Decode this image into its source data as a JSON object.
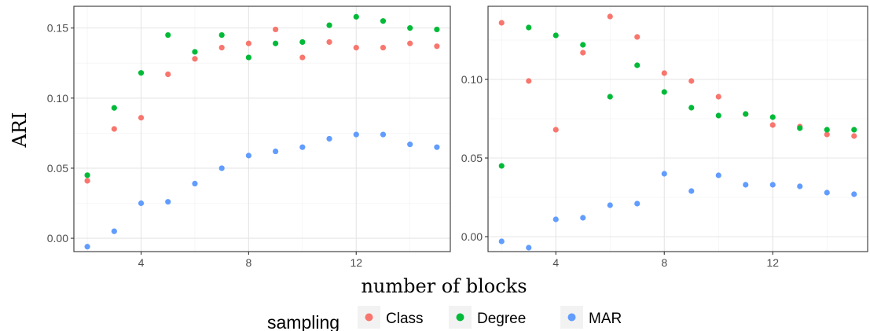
{
  "ylabel": "ARI",
  "xlabel": "number of blocks",
  "legend": {
    "title": "sampling",
    "items": [
      {
        "label": "Class",
        "color": "#F8766D"
      },
      {
        "label": "Degree",
        "color": "#00BA38"
      },
      {
        "label": "MAR",
        "color": "#619CFF"
      }
    ]
  },
  "chart_data": [
    {
      "type": "scatter",
      "title": "",
      "xlabel": "number of blocks",
      "ylabel": "ARI",
      "x": [
        2,
        3,
        4,
        5,
        6,
        7,
        8,
        9,
        10,
        11,
        12,
        13,
        14,
        15
      ],
      "xlim": [
        1.5,
        15.5
      ],
      "ylim": [
        -0.0095,
        0.1655
      ],
      "xticks": [
        4,
        8,
        12
      ],
      "yticks": [
        0.0,
        0.05,
        0.1,
        0.15
      ],
      "ytick_labels": [
        "0.00",
        "0.05",
        "0.10",
        "0.15"
      ],
      "grid": true,
      "series": [
        {
          "name": "Class",
          "color": "#F8766D",
          "values": [
            0.041,
            0.078,
            0.086,
            0.117,
            0.128,
            0.136,
            0.139,
            0.149,
            0.129,
            0.14,
            0.136,
            0.136,
            0.139,
            0.137
          ]
        },
        {
          "name": "Degree",
          "color": "#00BA38",
          "values": [
            0.045,
            0.093,
            0.118,
            0.145,
            0.133,
            0.145,
            0.129,
            0.139,
            0.14,
            0.152,
            0.158,
            0.155,
            0.15,
            0.149
          ]
        },
        {
          "name": "MAR",
          "color": "#619CFF",
          "values": [
            -0.006,
            0.005,
            0.025,
            0.026,
            0.039,
            0.05,
            0.059,
            0.062,
            0.065,
            0.071,
            0.074,
            0.074,
            0.067,
            0.065
          ]
        }
      ]
    },
    {
      "type": "scatter",
      "title": "",
      "xlabel": "number of blocks",
      "ylabel": "ARI",
      "x": [
        2,
        3,
        4,
        5,
        6,
        7,
        8,
        9,
        10,
        11,
        12,
        13,
        14,
        15
      ],
      "xlim": [
        1.5,
        15.5
      ],
      "ylim": [
        -0.0095,
        0.1465
      ],
      "xticks": [
        4,
        8,
        12
      ],
      "yticks": [
        0.0,
        0.05,
        0.1
      ],
      "ytick_labels": [
        "0.00",
        "0.05",
        "0.10"
      ],
      "grid": true,
      "series": [
        {
          "name": "Class",
          "color": "#F8766D",
          "values": [
            0.136,
            0.099,
            0.068,
            0.117,
            0.14,
            0.127,
            0.104,
            0.099,
            0.089,
            0.078,
            0.071,
            0.07,
            0.065,
            0.064
          ]
        },
        {
          "name": "Degree",
          "color": "#00BA38",
          "values": [
            0.045,
            0.133,
            0.128,
            0.122,
            0.089,
            0.109,
            0.092,
            0.082,
            0.077,
            0.078,
            0.076,
            0.069,
            0.068,
            0.068
          ]
        },
        {
          "name": "MAR",
          "color": "#619CFF",
          "values": [
            -0.003,
            -0.007,
            0.011,
            0.012,
            0.02,
            0.021,
            0.04,
            0.029,
            0.039,
            0.033,
            0.033,
            0.032,
            0.028,
            0.027
          ]
        }
      ]
    }
  ]
}
